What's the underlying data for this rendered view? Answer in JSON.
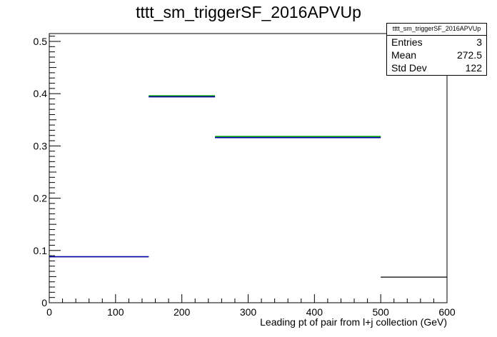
{
  "title": "tttt_sm_triggerSF_2016APVUp",
  "statbox": {
    "name": "tttt_sm_triggerSF_2016APVUp",
    "rows": [
      {
        "label": "Entries",
        "value": "3"
      },
      {
        "label": "Mean",
        "value": "272.5"
      },
      {
        "label": "Std Dev",
        "value": "122"
      }
    ]
  },
  "chart_data": {
    "type": "bar",
    "title": "tttt_sm_triggerSF_2016APVUp",
    "xlabel": "Leading pt of pair from l+j collection (GeV)",
    "ylabel": "",
    "xlim": [
      0,
      600
    ],
    "ylim": [
      0,
      0.515
    ],
    "xticks": [
      0,
      100,
      200,
      300,
      400,
      500,
      600
    ],
    "yticks": [
      0,
      0.1,
      0.2,
      0.3,
      0.4,
      0.5
    ],
    "xtick_labels": [
      "0",
      "100",
      "200",
      "300",
      "400",
      "500",
      "600"
    ],
    "ytick_labels": [
      "0",
      "0.1",
      "0.2",
      "0.3",
      "0.4",
      "0.5"
    ],
    "series": [
      {
        "color": "#000000",
        "bins": [
          {
            "x_low": 0,
            "x_high": 150,
            "value": 0.088
          },
          {
            "x_low": 150,
            "x_high": 250,
            "value": 0.395
          },
          {
            "x_low": 250,
            "x_high": 500,
            "value": 0.317
          },
          {
            "x_low": 500,
            "x_high": 600,
            "value": 0.049
          }
        ]
      },
      {
        "color": "#00aa00",
        "bins": [
          {
            "x_low": 150,
            "x_high": 250,
            "value": 0.396
          },
          {
            "x_low": 250,
            "x_high": 500,
            "value": 0.318
          }
        ]
      },
      {
        "color": "#0000aa",
        "bins": [
          {
            "x_low": 0,
            "x_high": 150,
            "value": 0.088
          },
          {
            "x_low": 150,
            "x_high": 250,
            "value": 0.394
          },
          {
            "x_low": 250,
            "x_high": 500,
            "value": 0.316
          }
        ]
      }
    ],
    "grid": false
  }
}
